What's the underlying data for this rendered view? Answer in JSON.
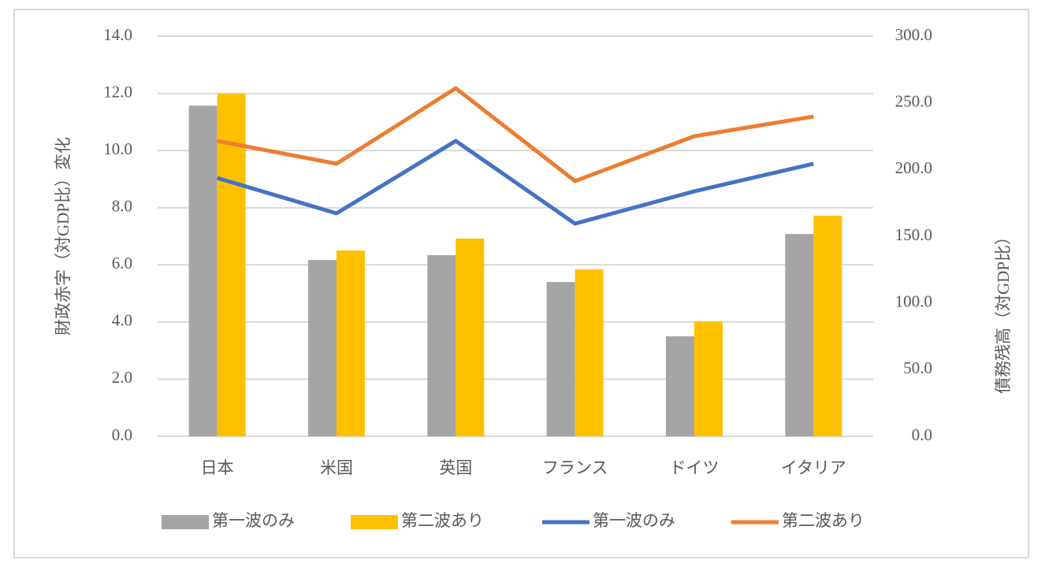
{
  "chart_data": {
    "type": "combo",
    "categories": [
      "日本",
      "米国",
      "英国",
      "フランス",
      "ドイツ",
      "イタリア"
    ],
    "series": [
      {
        "name": "第一波のみ",
        "type": "bar",
        "color": "#a5a5a5",
        "values": [
          11.57,
          6.17,
          6.34,
          5.4,
          3.5,
          7.08
        ]
      },
      {
        "name": "第二波あり",
        "type": "bar",
        "color": "#ffc000",
        "values": [
          11.99,
          6.5,
          6.92,
          5.84,
          4.02,
          7.72
        ]
      },
      {
        "name": "第一波のみ",
        "type": "line",
        "axis": "y2",
        "color": "#4472c4",
        "values": [
          193.7,
          167.2,
          221.5,
          159.5,
          183.7,
          204.4
        ]
      },
      {
        "name": "第二波あり",
        "type": "line",
        "axis": "y2",
        "color": "#ed7d31",
        "values": [
          221.5,
          204.4,
          261,
          191.4,
          225,
          239.8
        ]
      }
    ],
    "y_label": "財政赤字（対GDP比）変化",
    "y2_label": "債務残高（対GDP比）",
    "ylim": [
      0,
      14
    ],
    "yticks": [
      {
        "value": 0,
        "label": "0.0"
      },
      {
        "value": 2,
        "label": "2.0"
      },
      {
        "value": 4,
        "label": "4.0"
      },
      {
        "value": 6,
        "label": "6.0"
      },
      {
        "value": 8,
        "label": "8.0"
      },
      {
        "value": 10,
        "label": "10.0"
      },
      {
        "value": 12,
        "label": "12.0"
      },
      {
        "value": 14,
        "label": "14.0"
      }
    ],
    "y2lim": [
      0,
      300
    ],
    "y2ticks": [
      {
        "value": 0,
        "label": "0.0"
      },
      {
        "value": 50,
        "label": "50.0"
      },
      {
        "value": 100,
        "label": "100.0"
      },
      {
        "value": 150,
        "label": "150.0"
      },
      {
        "value": 200,
        "label": "200.0"
      },
      {
        "value": 250,
        "label": "250.0"
      },
      {
        "value": 300,
        "label": "300.0"
      }
    ],
    "grid": true,
    "legend": "bottom"
  }
}
